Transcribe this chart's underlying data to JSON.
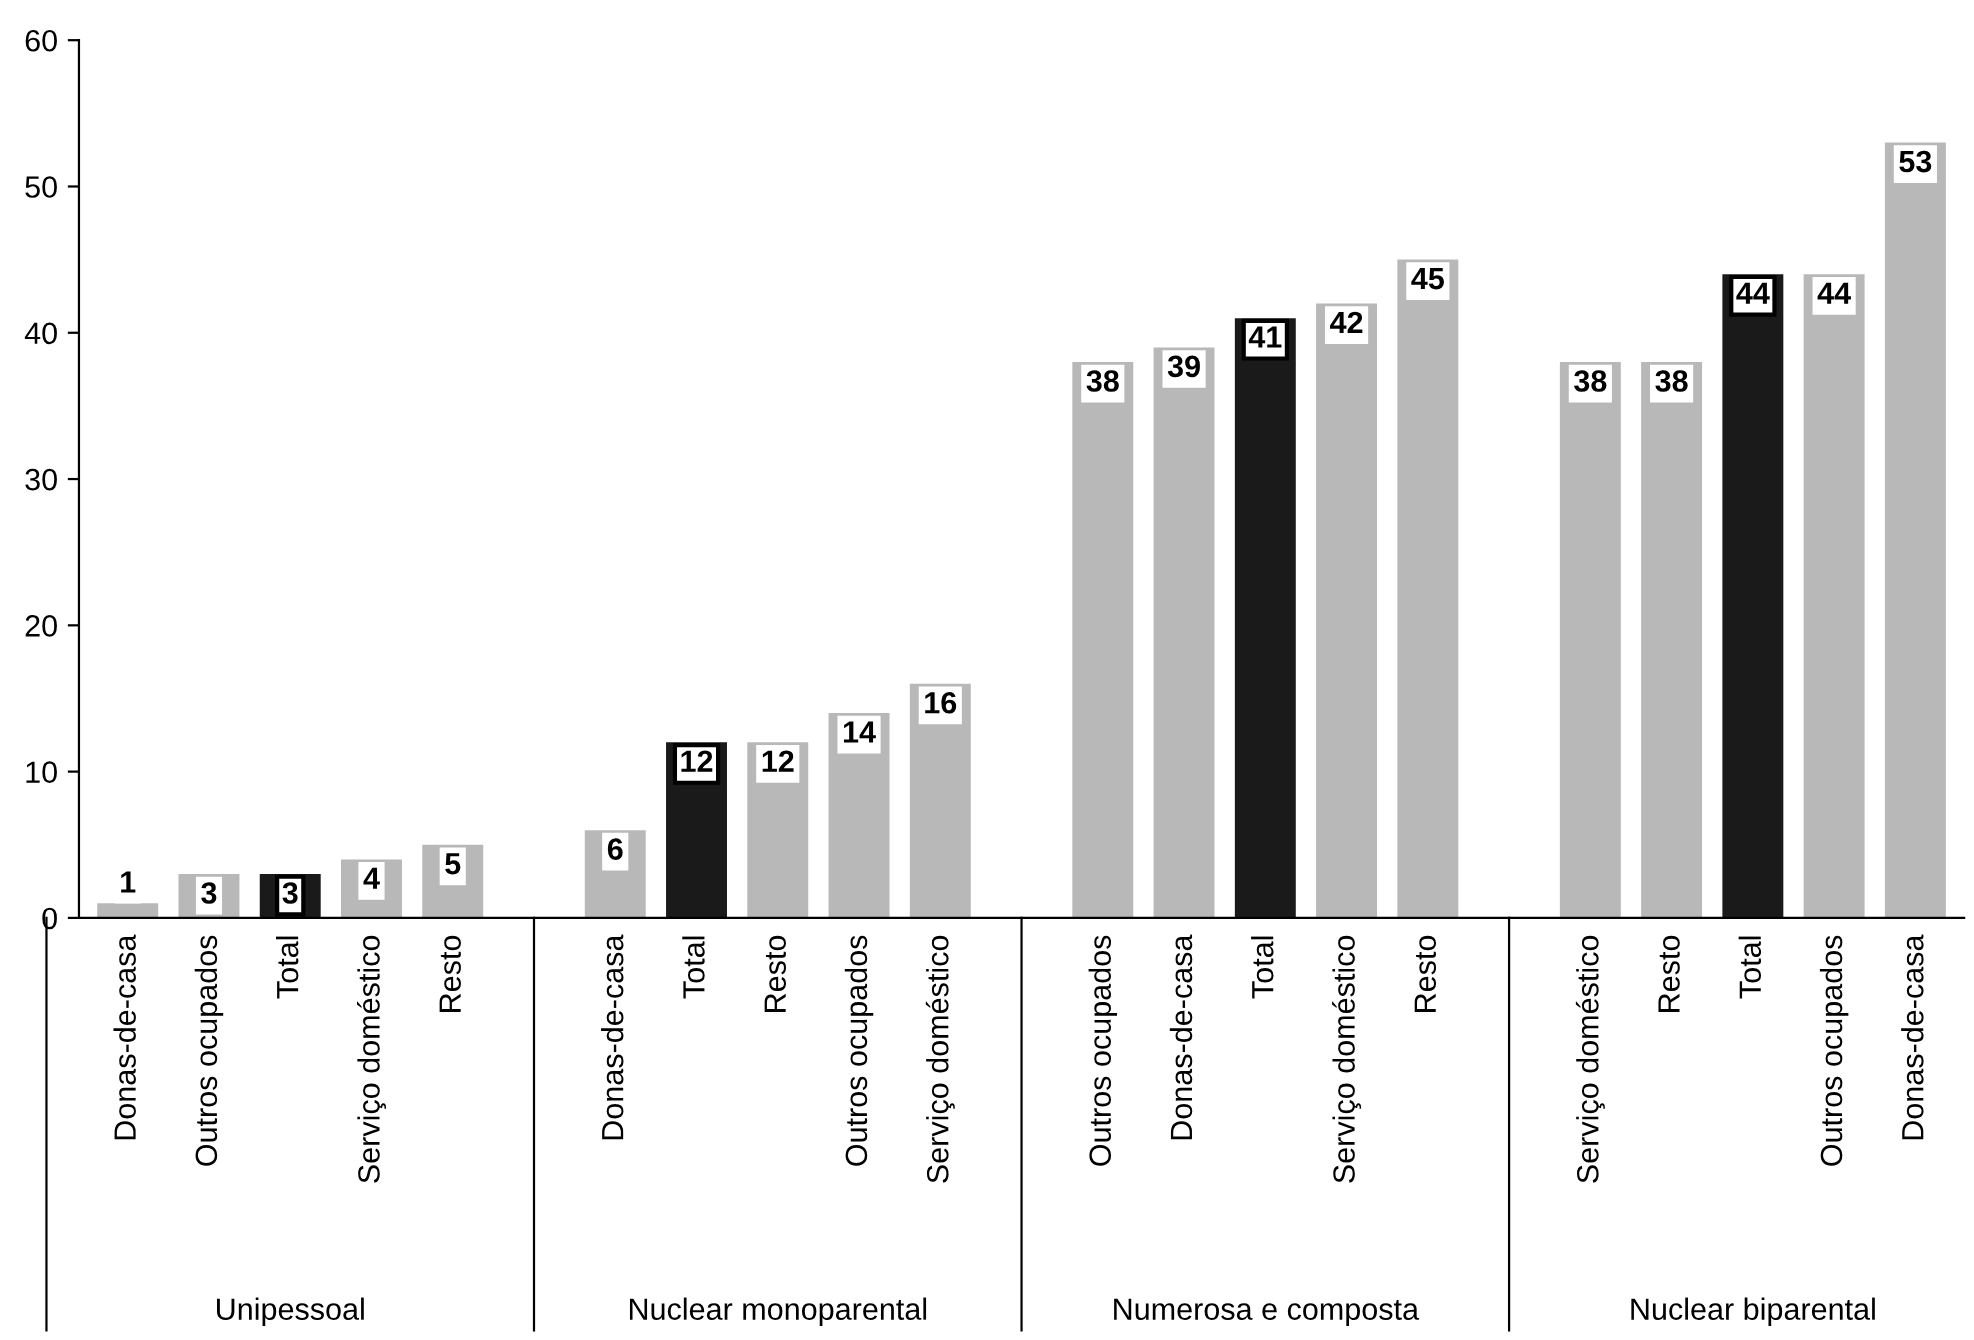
{
  "chart_data": {
    "type": "bar",
    "categories": [
      "Donas-de-casa",
      "Outros ocupados",
      "Total",
      "Serviço doméstico",
      "Resto",
      null,
      "Donas-de-casa",
      "Total",
      "Resto",
      "Outros ocupados",
      "Serviço doméstico",
      null,
      "Outros ocupados",
      "Donas-de-casa",
      "Total",
      "Serviço doméstico",
      "Resto",
      null,
      "Serviço doméstico",
      "Resto",
      "Total",
      "Outros ocupados",
      "Donas-de-casa"
    ],
    "values": [
      1,
      3,
      3,
      4,
      5,
      null,
      6,
      12,
      12,
      14,
      16,
      null,
      38,
      39,
      41,
      42,
      45,
      null,
      38,
      38,
      44,
      44,
      53
    ],
    "colors": [
      "#b8b8b8",
      "#b8b8b8",
      "#1a1a1a",
      "#b8b8b8",
      "#b8b8b8",
      null,
      "#b8b8b8",
      "#1a1a1a",
      "#b8b8b8",
      "#b8b8b8",
      "#b8b8b8",
      null,
      "#b8b8b8",
      "#b8b8b8",
      "#1a1a1a",
      "#b8b8b8",
      "#b8b8b8",
      null,
      "#b8b8b8",
      "#b8b8b8",
      "#1a1a1a",
      "#b8b8b8",
      "#b8b8b8"
    ],
    "data_labels": true,
    "annotations": [
      "Unipessoal",
      "Nuclear monoparental",
      "Numerosa e composta",
      "Nuclear biparental"
    ],
    "ylim": [
      0,
      60
    ],
    "yticks": [
      0,
      10,
      20,
      30,
      40,
      50,
      60
    ],
    "grid": false
  }
}
